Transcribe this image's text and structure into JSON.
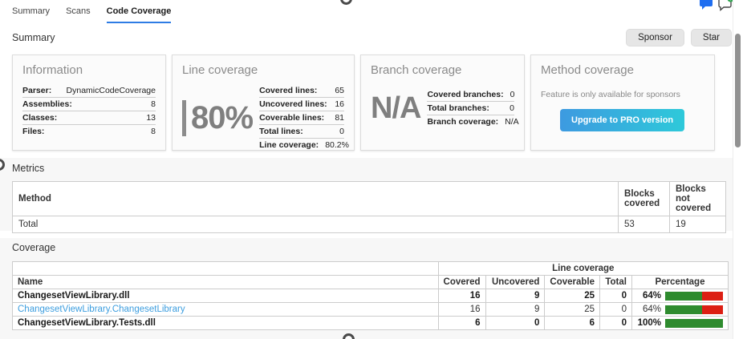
{
  "tabs": [
    {
      "label": "Summary",
      "active": false
    },
    {
      "label": "Scans",
      "active": false
    },
    {
      "label": "Code Coverage",
      "active": true
    }
  ],
  "header": {
    "summary_title": "Summary",
    "sponsor_label": "Sponsor",
    "star_label": "Star"
  },
  "top_icons": [
    {
      "name": "comment-icon"
    },
    {
      "name": "add-comment-icon"
    }
  ],
  "cards": {
    "information": {
      "title": "Information",
      "rows": [
        {
          "label": "Parser:",
          "value": "DynamicCodeCoverage"
        },
        {
          "label": "Assemblies:",
          "value": "8"
        },
        {
          "label": "Classes:",
          "value": "13"
        },
        {
          "label": "Files:",
          "value": "8"
        }
      ]
    },
    "line_coverage": {
      "title": "Line coverage",
      "big_value": "80%",
      "rows": [
        {
          "label": "Covered lines:",
          "value": "65"
        },
        {
          "label": "Uncovered lines:",
          "value": "16"
        },
        {
          "label": "Coverable lines:",
          "value": "81"
        },
        {
          "label": "Total lines:",
          "value": "0"
        },
        {
          "label": "Line coverage:",
          "value": "80.2%"
        }
      ]
    },
    "branch_coverage": {
      "title": "Branch coverage",
      "big_value": "N/A",
      "rows": [
        {
          "label": "Covered branches:",
          "value": "0"
        },
        {
          "label": "Total branches:",
          "value": "0"
        },
        {
          "label": "Branch coverage:",
          "value": "N/A"
        }
      ]
    },
    "method_coverage": {
      "title": "Method coverage",
      "message": "Feature is only available for sponsors",
      "button_label": "Upgrade to PRO version"
    }
  },
  "metrics": {
    "title": "Metrics",
    "columns": [
      "Method",
      "Blocks covered",
      "Blocks not covered"
    ],
    "rows": [
      {
        "method": "Total",
        "blocks_covered": "53",
        "blocks_not_covered": "19"
      }
    ]
  },
  "coverage": {
    "title": "Coverage",
    "group_header": "Line coverage",
    "columns": [
      "Name",
      "Covered",
      "Uncovered",
      "Coverable",
      "Total",
      "Percentage"
    ],
    "rows": [
      {
        "name": "ChangesetViewLibrary.dll",
        "covered": "16",
        "uncovered": "9",
        "coverable": "25",
        "total": "0",
        "percentage": "64%",
        "pct": 64
      },
      {
        "name": "ChangesetViewLibrary.ChangesetLibrary",
        "covered": "16",
        "uncovered": "9",
        "coverable": "25",
        "total": "0",
        "percentage": "64%",
        "pct": 64
      },
      {
        "name": "ChangesetViewLibrary.Tests.dll",
        "covered": "6",
        "uncovered": "0",
        "coverable": "6",
        "total": "0",
        "percentage": "100%",
        "pct": 100
      }
    ]
  },
  "colors": {
    "tab_underline": "#2e7ce4",
    "link_blue": "#3d9edf",
    "bar_green": "#2e8b2e",
    "bar_red": "#dc1f13",
    "pro_gradient_start": "#3d9ae0",
    "pro_gradient_end": "#2ec9da"
  }
}
